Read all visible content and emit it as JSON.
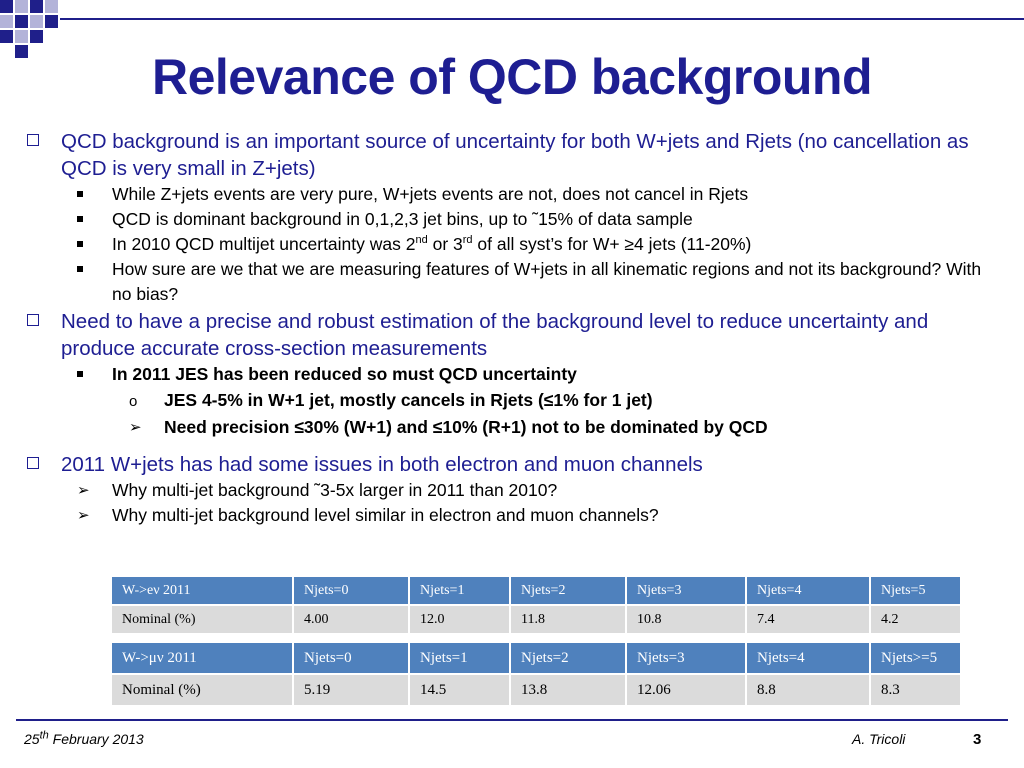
{
  "title": "Relevance of QCD background",
  "bullets": {
    "b1": {
      "text": " QCD background is an important source of uncertainty for both W+jets and Rjets (no cancellation as QCD is very small in Z+jets)",
      "subs": [
        "While Z+jets events are very pure, W+jets events are not, does not cancel in Rjets",
        "QCD is dominant background in 0,1,2,3 jet bins, up to ˜15% of data sample",
        "How sure are we that we are measuring features of W+jets in all kinematic regions and not its background? With no bias?"
      ],
      "sub3": {
        "pre": "In 2010 QCD multijet uncertainty was 2",
        "sup1": "nd",
        "mid": " or 3",
        "sup2": "rd",
        "post": " of all syst’s for W+ ≥4 jets (11-20%)"
      }
    },
    "b2": {
      "text": "Need to have a precise and robust estimation of the background level to reduce uncertainty and produce accurate cross-section measurements",
      "sub": "In 2011 JES has been reduced so must QCD uncertainty",
      "subsub": [
        "JES 4-5% in W+1 jet, mostly cancels in Rjets (≤1% for 1 jet)",
        "Need precision ≤30% (W+1) and ≤10% (R+1) not to be dominated by  QCD"
      ]
    },
    "b3": {
      "text": "2011 W+jets has had some issues in both electron and muon channels",
      "subs": [
        "Why multi-jet background ˜3-5x larger in 2011 than 2010?",
        "Why multi-jet background level similar in electron and muon channels?"
      ]
    }
  },
  "table_e": {
    "header": [
      "W->eν 2011",
      "Njets=0",
      "Njets=1",
      "Njets=2",
      "Njets=3",
      "Njets=4",
      "Njets=5"
    ],
    "row": [
      "Nominal (%)",
      "4.00",
      "12.0",
      "11.8",
      "10.8",
      "7.4",
      "4.2"
    ]
  },
  "table_mu": {
    "header": [
      "W->μν 2011",
      "Njets=0",
      "Njets=1",
      "Njets=2",
      "Njets=3",
      "Njets=4",
      "Njets>=5"
    ],
    "row": [
      "Nominal (%)",
      "5.19",
      "14.5",
      "13.8",
      "12.06",
      "8.8",
      "8.3"
    ]
  },
  "footer": {
    "date_day": "25",
    "date_sup": "th",
    "date_rest": "  February  2013",
    "author": "A. Tricoli",
    "page": "3"
  },
  "colors": {
    "title": "#1e1e92",
    "header_bg": "#4f81bd",
    "row_bg": "#dbdbdb"
  }
}
